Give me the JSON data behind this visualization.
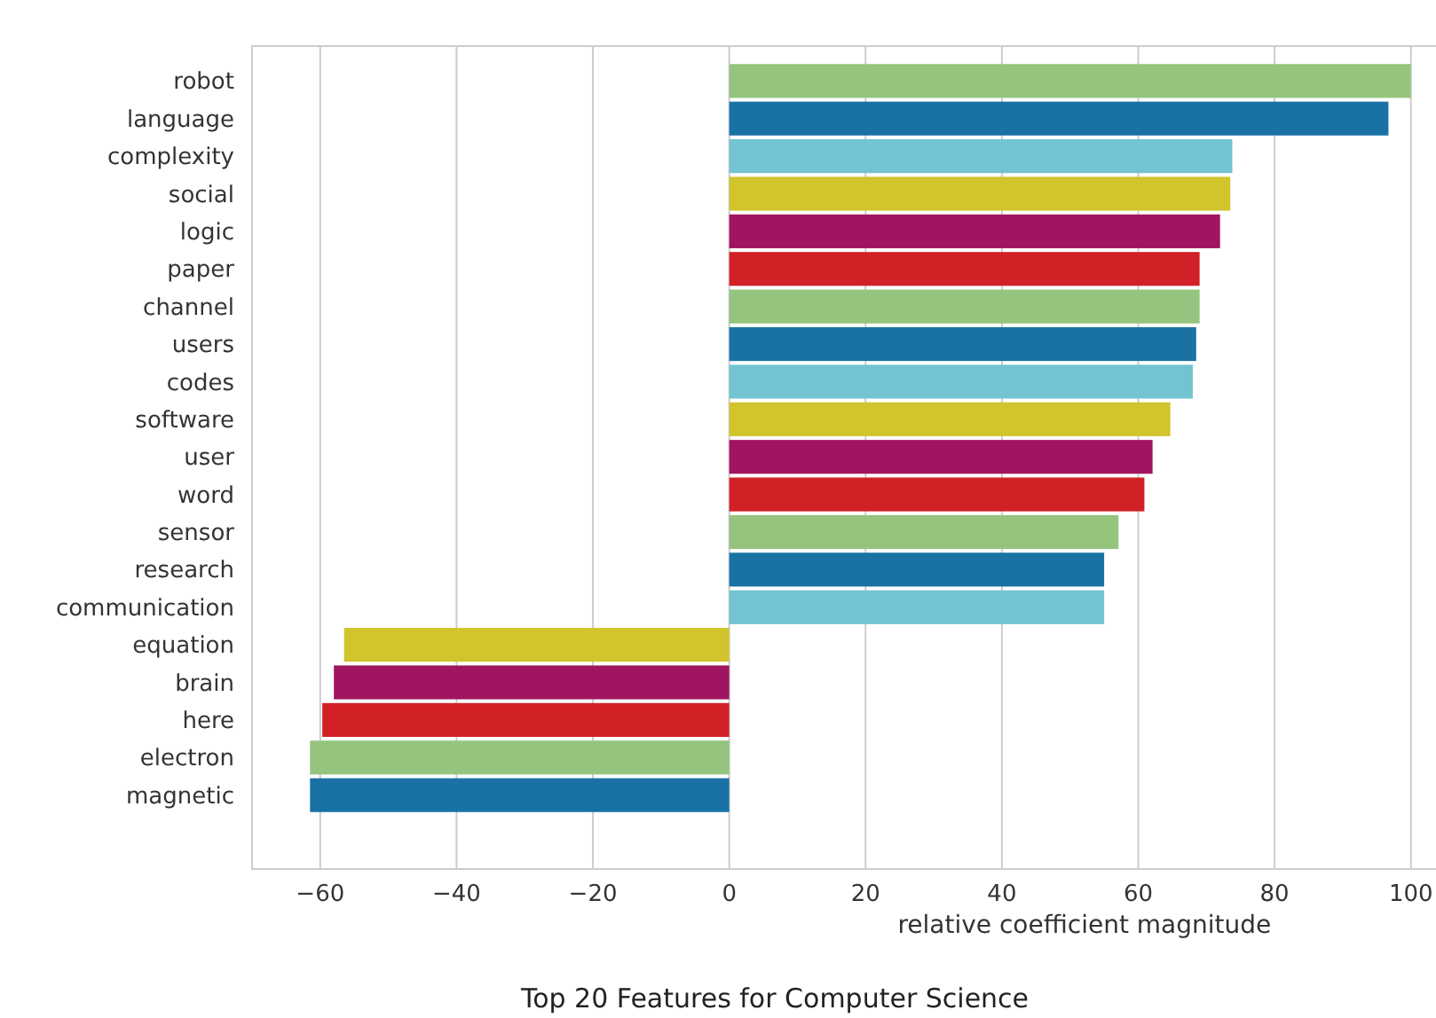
{
  "chart_data": {
    "type": "bar",
    "orientation": "horizontal",
    "title": "Top 20 Features for Computer Science",
    "xlabel": "relative coefficient magnitude",
    "categories": [
      "robot",
      "language",
      "complexity",
      "social",
      "logic",
      "paper",
      "channel",
      "users",
      "codes",
      "software",
      "user",
      "word",
      "sensor",
      "research",
      "communication",
      "equation",
      "brain",
      "here",
      "electron",
      "magnetic"
    ],
    "values": [
      100,
      96.7,
      73.8,
      73.5,
      72,
      69,
      69,
      68.5,
      68,
      64.7,
      62.1,
      60.9,
      57.1,
      55,
      55,
      -56.5,
      -58,
      -59.7,
      -61.5,
      -61.5
    ],
    "colors": [
      "#94c47d",
      "#1a72a4",
      "#73c4d3",
      "#d1c42c",
      "#a0155f",
      "#d22027",
      "#94c47d",
      "#1a72a4",
      "#73c4d3",
      "#d1c42c",
      "#a0155f",
      "#d22027",
      "#94c47d",
      "#1a72a4",
      "#73c4d3",
      "#d1c42c",
      "#a0155f",
      "#d22027",
      "#94c47d",
      "#1a72a4"
    ],
    "xlim": [
      -70,
      104.2
    ],
    "xticks": [
      -60,
      -40,
      -20,
      0,
      20,
      40,
      60,
      80,
      100
    ],
    "grid": "x"
  }
}
